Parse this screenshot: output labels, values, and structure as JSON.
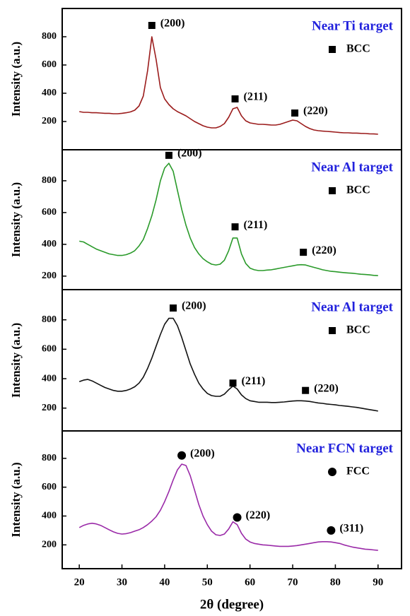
{
  "chart_data": [
    {
      "type": "line",
      "title": "Near Ti target",
      "ylabel": "Intensity (a.u.)",
      "color": "#9b1c1c",
      "legend": {
        "label": "BCC",
        "marker": "square"
      },
      "xlim": [
        16,
        95.5
      ],
      "ylim": [
        0,
        1000
      ],
      "yticks": [
        200,
        400,
        600,
        800
      ],
      "x": [
        20,
        21,
        22,
        23,
        24,
        25,
        26,
        27,
        28,
        29,
        30,
        31,
        32,
        33,
        34,
        35,
        36,
        37,
        38,
        39,
        40,
        41,
        42,
        43,
        44,
        45,
        46,
        47,
        48,
        49,
        50,
        51,
        52,
        53,
        54,
        55,
        56,
        57,
        58,
        59,
        60,
        61,
        62,
        63,
        64,
        65,
        66,
        67,
        68,
        69,
        70,
        71,
        72,
        73,
        74,
        75,
        76,
        77,
        78,
        79,
        80,
        81,
        82,
        83,
        84,
        85,
        86,
        87,
        88,
        89,
        90
      ],
      "values": [
        270,
        265,
        265,
        262,
        262,
        260,
        258,
        258,
        255,
        255,
        258,
        262,
        268,
        280,
        310,
        380,
        560,
        800,
        640,
        440,
        360,
        320,
        290,
        270,
        255,
        240,
        220,
        200,
        185,
        170,
        160,
        155,
        155,
        165,
        185,
        230,
        290,
        300,
        240,
        205,
        190,
        185,
        180,
        180,
        178,
        175,
        175,
        180,
        190,
        200,
        210,
        205,
        185,
        165,
        150,
        140,
        135,
        132,
        130,
        128,
        125,
        122,
        120,
        120,
        118,
        118,
        116,
        115,
        113,
        112,
        110
      ],
      "annotations": [
        {
          "text": "(200)",
          "x": 37,
          "y": 880,
          "marker": "square"
        },
        {
          "text": "(211)",
          "x": 56.5,
          "y": 360,
          "marker": "square"
        },
        {
          "text": "(220)",
          "x": 70.5,
          "y": 260,
          "marker": "square"
        }
      ]
    },
    {
      "type": "line",
      "title": "Near Al target",
      "ylabel": "Intensity (a.u.)",
      "color": "#2a9a2a",
      "legend": {
        "label": "BCC",
        "marker": "square"
      },
      "xlim": [
        16,
        95.5
      ],
      "ylim": [
        115,
        995
      ],
      "yticks": [
        200,
        400,
        600,
        800
      ],
      "x": [
        20,
        21,
        22,
        23,
        24,
        25,
        26,
        27,
        28,
        29,
        30,
        31,
        32,
        33,
        34,
        35,
        36,
        37,
        38,
        39,
        40,
        41,
        42,
        43,
        44,
        45,
        46,
        47,
        48,
        49,
        50,
        51,
        52,
        53,
        54,
        55,
        56,
        57,
        58,
        59,
        60,
        61,
        62,
        63,
        64,
        65,
        66,
        67,
        68,
        69,
        70,
        71,
        72,
        73,
        74,
        75,
        76,
        77,
        78,
        79,
        80,
        81,
        82,
        83,
        84,
        85,
        86,
        87,
        88,
        89,
        90
      ],
      "values": [
        420,
        415,
        400,
        385,
        370,
        360,
        350,
        340,
        335,
        330,
        330,
        335,
        345,
        360,
        390,
        430,
        500,
        580,
        680,
        800,
        880,
        910,
        860,
        740,
        620,
        520,
        440,
        380,
        340,
        310,
        290,
        275,
        270,
        275,
        300,
        360,
        440,
        440,
        340,
        280,
        250,
        240,
        235,
        235,
        238,
        240,
        245,
        250,
        255,
        260,
        265,
        270,
        272,
        270,
        262,
        255,
        248,
        240,
        235,
        230,
        228,
        225,
        222,
        220,
        218,
        215,
        212,
        210,
        208,
        205,
        203
      ],
      "annotations": [
        {
          "text": "(200)",
          "x": 41,
          "y": 960,
          "marker": "square"
        },
        {
          "text": "(211)",
          "x": 56.5,
          "y": 510,
          "marker": "square"
        },
        {
          "text": "(220)",
          "x": 72.5,
          "y": 350,
          "marker": "square"
        }
      ]
    },
    {
      "type": "line",
      "title": "Near Al target",
      "ylabel": "Intensity (a.u.)",
      "color": "#111111",
      "legend": {
        "label": "BCC",
        "marker": "square"
      },
      "xlim": [
        16,
        95.5
      ],
      "ylim": [
        45,
        1005
      ],
      "yticks": [
        200,
        400,
        600,
        800
      ],
      "x": [
        20,
        21,
        22,
        23,
        24,
        25,
        26,
        27,
        28,
        29,
        30,
        31,
        32,
        33,
        34,
        35,
        36,
        37,
        38,
        39,
        40,
        41,
        42,
        43,
        44,
        45,
        46,
        47,
        48,
        49,
        50,
        51,
        52,
        53,
        54,
        55,
        56,
        57,
        58,
        59,
        60,
        61,
        62,
        63,
        64,
        65,
        66,
        67,
        68,
        69,
        70,
        71,
        72,
        73,
        74,
        75,
        76,
        77,
        78,
        79,
        80,
        81,
        82,
        83,
        84,
        85,
        86,
        87,
        88,
        89,
        90
      ],
      "values": [
        380,
        390,
        395,
        385,
        370,
        355,
        340,
        330,
        320,
        315,
        315,
        320,
        330,
        345,
        370,
        410,
        470,
        540,
        620,
        700,
        770,
        810,
        810,
        760,
        680,
        590,
        500,
        430,
        370,
        330,
        300,
        285,
        280,
        280,
        295,
        325,
        350,
        330,
        290,
        265,
        250,
        245,
        240,
        240,
        240,
        238,
        238,
        240,
        242,
        245,
        248,
        250,
        250,
        248,
        245,
        240,
        235,
        232,
        228,
        225,
        222,
        218,
        215,
        212,
        208,
        205,
        200,
        195,
        190,
        185,
        180
      ],
      "annotations": [
        {
          "text": "(200)",
          "x": 42,
          "y": 880,
          "marker": "square"
        },
        {
          "text": "(211)",
          "x": 56,
          "y": 370,
          "marker": "square"
        },
        {
          "text": "(220)",
          "x": 73,
          "y": 320,
          "marker": "square"
        }
      ]
    },
    {
      "type": "line",
      "title": "Near FCN target",
      "ylabel": "Intensity (a.u.)",
      "color": "#9a2aa8",
      "legend": {
        "label": "FCC",
        "marker": "circle"
      },
      "xlabel": "2θ (degree)",
      "xlim": [
        16,
        95.5
      ],
      "ylim": [
        35,
        990
      ],
      "yticks": [
        200,
        400,
        600,
        800
      ],
      "xticks": [
        20,
        30,
        40,
        50,
        60,
        70,
        80,
        90
      ],
      "x": [
        20,
        21,
        22,
        23,
        24,
        25,
        26,
        27,
        28,
        29,
        30,
        31,
        32,
        33,
        34,
        35,
        36,
        37,
        38,
        39,
        40,
        41,
        42,
        43,
        44,
        45,
        46,
        47,
        48,
        49,
        50,
        51,
        52,
        53,
        54,
        55,
        56,
        57,
        58,
        59,
        60,
        61,
        62,
        63,
        64,
        65,
        66,
        67,
        68,
        69,
        70,
        71,
        72,
        73,
        74,
        75,
        76,
        77,
        78,
        79,
        80,
        81,
        82,
        83,
        84,
        85,
        86,
        87,
        88,
        89,
        90
      ],
      "values": [
        320,
        335,
        345,
        350,
        345,
        335,
        320,
        305,
        290,
        280,
        275,
        278,
        285,
        295,
        305,
        320,
        340,
        365,
        395,
        440,
        500,
        570,
        650,
        720,
        760,
        750,
        680,
        580,
        480,
        400,
        340,
        295,
        270,
        265,
        275,
        310,
        360,
        340,
        280,
        240,
        220,
        210,
        205,
        200,
        198,
        195,
        192,
        190,
        190,
        190,
        192,
        195,
        200,
        205,
        210,
        215,
        220,
        222,
        222,
        220,
        215,
        210,
        200,
        192,
        185,
        180,
        175,
        170,
        168,
        165,
        162
      ],
      "annotations": [
        {
          "text": "(200)",
          "x": 44,
          "y": 820,
          "marker": "circle"
        },
        {
          "text": "(220)",
          "x": 57,
          "y": 390,
          "marker": "circle"
        },
        {
          "text": "(311)",
          "x": 79,
          "y": 300,
          "marker": "circle"
        }
      ]
    }
  ]
}
